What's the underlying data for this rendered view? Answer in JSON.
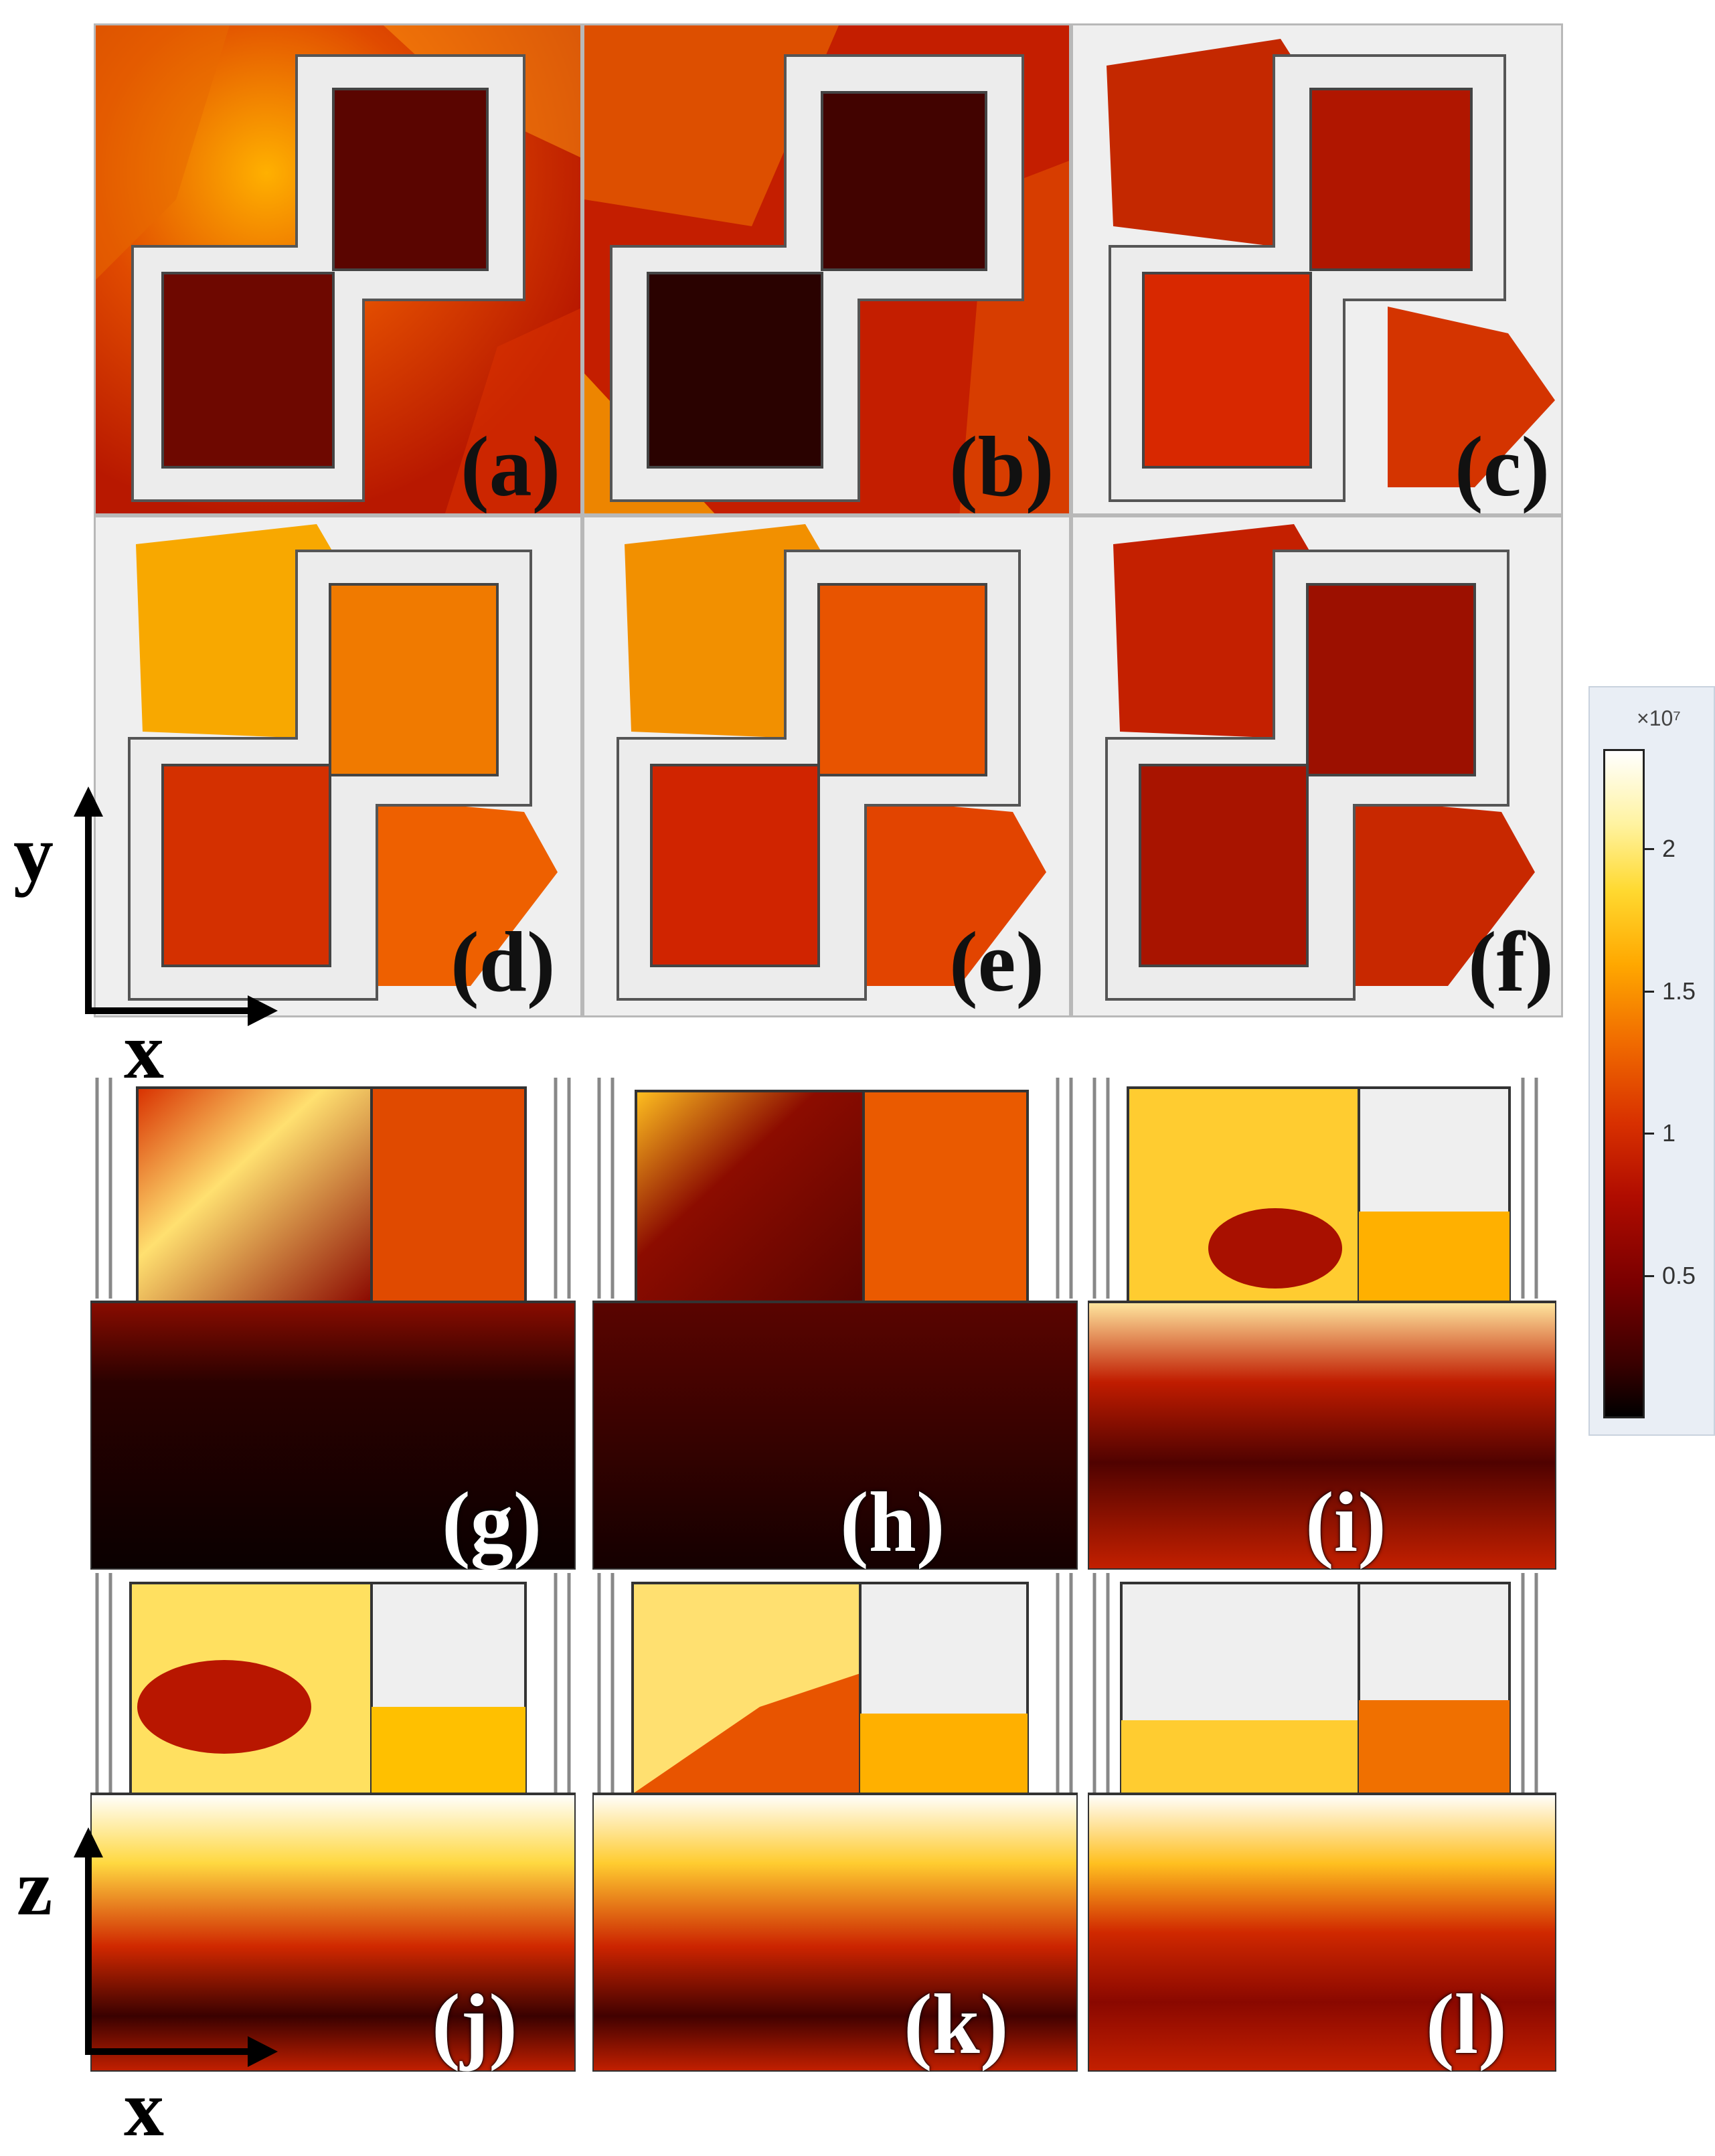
{
  "panels": [
    {
      "label": "(a)",
      "view": "xy",
      "tone": "mixed-dark"
    },
    {
      "label": "(b)",
      "view": "xy",
      "tone": "dark"
    },
    {
      "label": "(c)",
      "view": "xy",
      "tone": "light-red"
    },
    {
      "label": "(d)",
      "view": "xy",
      "tone": "orange"
    },
    {
      "label": "(e)",
      "view": "xy",
      "tone": "orange-red"
    },
    {
      "label": "(f)",
      "view": "xy",
      "tone": "red"
    },
    {
      "label": "(g)",
      "view": "xz",
      "tone": "dark-bottom"
    },
    {
      "label": "(h)",
      "view": "xz",
      "tone": "darker"
    },
    {
      "label": "(i)",
      "view": "xz",
      "tone": "mid"
    },
    {
      "label": "(j)",
      "view": "xz",
      "tone": "bright"
    },
    {
      "label": "(k)",
      "view": "xz",
      "tone": "bright"
    },
    {
      "label": "(l)",
      "view": "xz",
      "tone": "bright"
    }
  ],
  "axes": {
    "top_vertical": "y",
    "top_horizontal": "x",
    "bottom_vertical": "z",
    "bottom_horizontal": "x"
  },
  "colorbar": {
    "exponent": "×10⁷",
    "ticks": [
      {
        "value": 2,
        "label": "2"
      },
      {
        "value": 1.5,
        "label": "1.5"
      },
      {
        "value": 1,
        "label": "1"
      },
      {
        "value": 0.5,
        "label": "0.5"
      }
    ],
    "range": [
      0,
      2.35
    ],
    "colors": [
      "#000000",
      "#7a0000",
      "#d83000",
      "#ffa800",
      "#fff3a0",
      "#ffffff"
    ]
  }
}
